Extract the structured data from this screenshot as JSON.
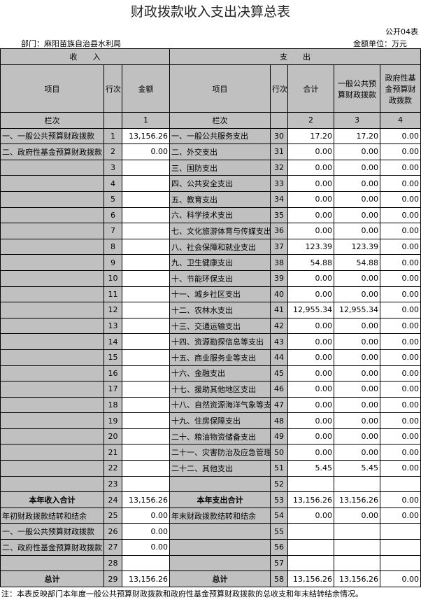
{
  "title": "财政拨款收入支出决算总表",
  "form_no": "公开04表",
  "department": "部门：麻阳苗族自治县水利局",
  "unit": "金额单位：万元",
  "headers": {
    "income": "收　　入",
    "expense": "支　　出",
    "item": "项目",
    "line_no": "行次",
    "amount": "金额",
    "total": "合计",
    "general": "一般公共预算财政拨款",
    "fund": "政府性基金预算财政拨款",
    "col_label": "栏次",
    "col1": "1",
    "col2": "2",
    "col3": "3",
    "col4": "4"
  },
  "rows": [
    {
      "li": "一、一般公共预算财政拨款",
      "ln": "1",
      "la": "13,156.26",
      "ri": "一、一般公共服务支出",
      "rn": "30",
      "t": "17.20",
      "g": "17.20",
      "f": "0.00"
    },
    {
      "li": "二、政府性基金预算财政拨款",
      "ln": "2",
      "la": "0.00",
      "ri": "二、外交支出",
      "rn": "31",
      "t": "0.00",
      "g": "0.00",
      "f": "0.00"
    },
    {
      "li": "",
      "ln": "3",
      "la": "",
      "ri": "三、国防支出",
      "rn": "32",
      "t": "0.00",
      "g": "0.00",
      "f": "0.00"
    },
    {
      "li": "",
      "ln": "4",
      "la": "",
      "ri": "四、公共安全支出",
      "rn": "33",
      "t": "0.00",
      "g": "0.00",
      "f": "0.00"
    },
    {
      "li": "",
      "ln": "5",
      "la": "",
      "ri": "五、教育支出",
      "rn": "34",
      "t": "0.00",
      "g": "0.00",
      "f": "0.00"
    },
    {
      "li": "",
      "ln": "6",
      "la": "",
      "ri": "六、科学技术支出",
      "rn": "35",
      "t": "0.00",
      "g": "0.00",
      "f": "0.00"
    },
    {
      "li": "",
      "ln": "7",
      "la": "",
      "ri": "七、文化旅游体育与传媒支出",
      "rn": "36",
      "t": "0.00",
      "g": "0.00",
      "f": "0.00"
    },
    {
      "li": "",
      "ln": "8",
      "la": "",
      "ri": "八、社会保障和就业支出",
      "rn": "37",
      "t": "123.39",
      "g": "123.39",
      "f": "0.00"
    },
    {
      "li": "",
      "ln": "9",
      "la": "",
      "ri": "九、卫生健康支出",
      "rn": "38",
      "t": "54.88",
      "g": "54.88",
      "f": "0.00"
    },
    {
      "li": "",
      "ln": "10",
      "la": "",
      "ri": "十、节能环保支出",
      "rn": "39",
      "t": "0.00",
      "g": "0.00",
      "f": "0.00"
    },
    {
      "li": "",
      "ln": "11",
      "la": "",
      "ri": "十一、城乡社区支出",
      "rn": "40",
      "t": "0.00",
      "g": "0.00",
      "f": "0.00"
    },
    {
      "li": "",
      "ln": "12",
      "la": "",
      "ri": "十二、农林水支出",
      "rn": "41",
      "t": "12,955.34",
      "g": "12,955.34",
      "f": "0.00"
    },
    {
      "li": "",
      "ln": "13",
      "la": "",
      "ri": "十三、交通运输支出",
      "rn": "42",
      "t": "0.00",
      "g": "0.00",
      "f": "0.00"
    },
    {
      "li": "",
      "ln": "14",
      "la": "",
      "ri": "十四、资源勘探信息等支出",
      "rn": "43",
      "t": "0.00",
      "g": "0.00",
      "f": "0.00"
    },
    {
      "li": "",
      "ln": "15",
      "la": "",
      "ri": "十五、商业服务业等支出",
      "rn": "44",
      "t": "0.00",
      "g": "0.00",
      "f": "0.00"
    },
    {
      "li": "",
      "ln": "16",
      "la": "",
      "ri": "十六、金融支出",
      "rn": "45",
      "t": "0.00",
      "g": "0.00",
      "f": "0.00"
    },
    {
      "li": "",
      "ln": "17",
      "la": "",
      "ri": "十七、援助其他地区支出",
      "rn": "46",
      "t": "0.00",
      "g": "0.00",
      "f": "0.00"
    },
    {
      "li": "",
      "ln": "18",
      "la": "",
      "ri": "十八、自然资源海洋气象等支出",
      "rn": "47",
      "t": "0.00",
      "g": "0.00",
      "f": "0.00"
    },
    {
      "li": "",
      "ln": "19",
      "la": "",
      "ri": "十九、住房保障支出",
      "rn": "48",
      "t": "0.00",
      "g": "0.00",
      "f": "0.00"
    },
    {
      "li": "",
      "ln": "20",
      "la": "",
      "ri": "二十、粮油物资储备支出",
      "rn": "49",
      "t": "0.00",
      "g": "0.00",
      "f": "0.00"
    },
    {
      "li": "",
      "ln": "21",
      "la": "",
      "ri": "二十一、灾害防治及应急管理支出",
      "rn": "50",
      "t": "0.00",
      "g": "0.00",
      "f": "0.00"
    },
    {
      "li": "",
      "ln": "22",
      "la": "",
      "ri": "二十二、其他支出",
      "rn": "51",
      "t": "5.45",
      "g": "5.45",
      "f": "0.00"
    },
    {
      "li": "",
      "ln": "23",
      "la": "",
      "ri": "",
      "rn": "52",
      "t": "",
      "g": "",
      "f": ""
    },
    {
      "li": "本年收入合计",
      "ln": "24",
      "la": "13,156.26",
      "ri": "本年支出合计",
      "rn": "53",
      "t": "13,156.26",
      "g": "13,156.26",
      "f": "0.00",
      "bold": true
    },
    {
      "li": "年初财政拨款结转和结余",
      "ln": "25",
      "la": "0.00",
      "ri": "年末财政拨款结转和结余",
      "rn": "54",
      "t": "0.00",
      "g": "0.00",
      "f": "0.00"
    },
    {
      "li": "一、一般公共预算财政拨款",
      "ln": "26",
      "la": "0.00",
      "ri": "",
      "rn": "55",
      "t": "",
      "g": "",
      "f": ""
    },
    {
      "li": "二、政府性基金预算财政拨款",
      "ln": "27",
      "la": "0.00",
      "ri": "",
      "rn": "56",
      "t": "",
      "g": "",
      "f": ""
    },
    {
      "li": "",
      "ln": "28",
      "la": "",
      "ri": "",
      "rn": "57",
      "t": "",
      "g": "",
      "f": ""
    },
    {
      "li": "总计",
      "ln": "29",
      "la": "13,156.26",
      "ri": "总计",
      "rn": "58",
      "t": "13,156.26",
      "g": "13,156.26",
      "f": "0.00",
      "bold": true
    }
  ],
  "note": "注：本表反映部门本年度一般公共预算财政拨款和政府性基金预算财政拨款的总收支和年末结转结余情况。",
  "colors": {
    "header_gray": "#c0c0c0",
    "cell_white": "#ffffff"
  }
}
